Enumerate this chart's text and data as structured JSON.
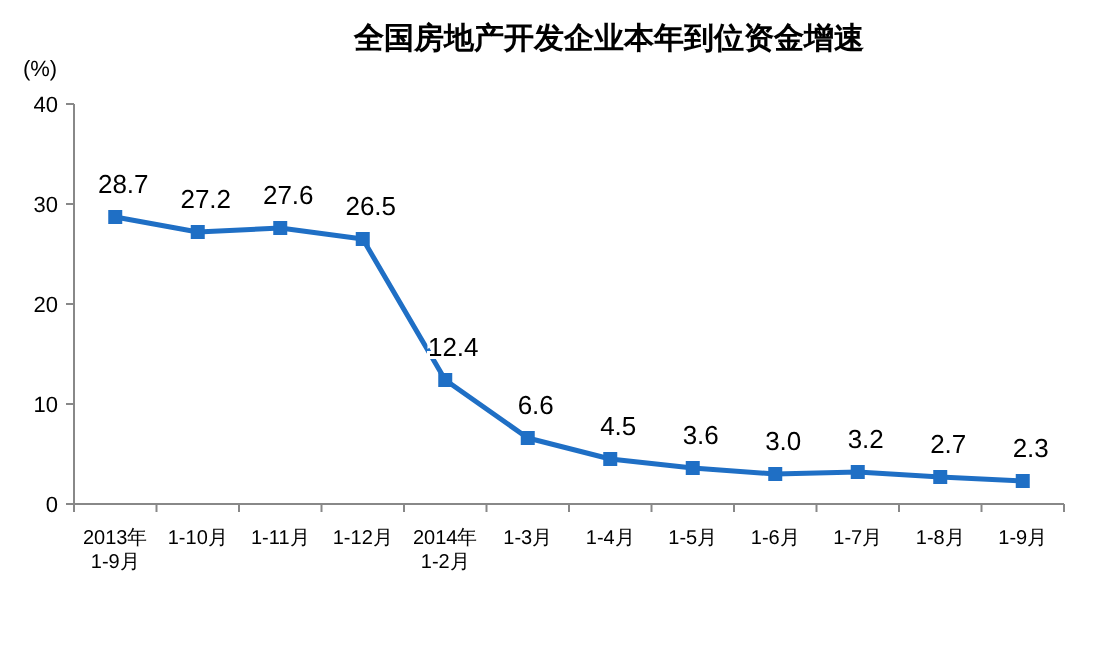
{
  "chart_data": {
    "type": "line",
    "title": "全国房地产开发企业本年到位资金增速",
    "ylabel": "(%)",
    "categories": [
      "2013年\n1-9月",
      "1-10月",
      "1-11月",
      "1-12月",
      "2014年\n1-2月",
      "1-3月",
      "1-4月",
      "1-5月",
      "1-6月",
      "1-7月",
      "1-8月",
      "1-9月"
    ],
    "series": [
      {
        "color": "#1f6fc5",
        "values": [
          28.7,
          27.2,
          27.6,
          26.5,
          12.4,
          6.6,
          4.5,
          3.6,
          3.0,
          3.2,
          2.7,
          2.3
        ]
      }
    ],
    "value_labels": [
      "28.7",
      "27.2",
      "27.6",
      "26.5",
      "12.4",
      "6.6",
      "4.5",
      "3.6",
      "3.0",
      "3.2",
      "2.7",
      "2.3"
    ],
    "ylim": [
      0,
      40
    ],
    "yticks": [
      0,
      10,
      20,
      30,
      40
    ],
    "grid": false,
    "marker": "square",
    "line_style": "solid"
  }
}
